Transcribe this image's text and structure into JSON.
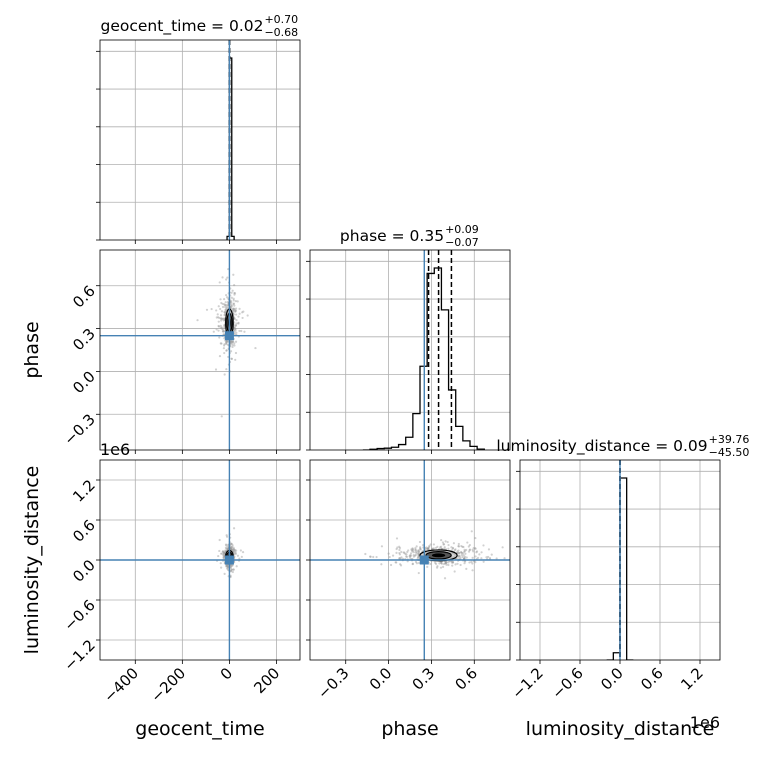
{
  "chart_data": {
    "type": "corner",
    "grid": true,
    "parameters": [
      "geocent_time",
      "phase",
      "luminosity_distance"
    ],
    "axis_labels": [
      "geocent_time",
      "phase",
      "luminosity_distance"
    ],
    "ranges": {
      "geocent_time": [
        -550,
        300
      ],
      "phase": [
        -0.55,
        0.85
      ],
      "luminosity_distance": [
        -1500000,
        1500000
      ]
    },
    "ticks": {
      "geocent_time": [
        -400,
        -200,
        0,
        200
      ],
      "phase": [
        -0.3,
        0.0,
        0.3,
        0.6
      ],
      "luminosity_distance": [
        -1200000,
        -600000,
        0,
        600000,
        1200000
      ]
    },
    "tick_labels": {
      "geocent_time": [
        "−400",
        "−200",
        "0",
        "200"
      ],
      "phase": [
        "−0.3",
        "0.0",
        "0.3",
        "0.6"
      ],
      "luminosity_distance": [
        "−1.2",
        "−0.6",
        "0.0",
        "0.6",
        "1.2"
      ]
    },
    "offset_label": "1e6",
    "titles": [
      {
        "name": "geocent_time",
        "value": "0.02",
        "plus": "+0.70",
        "minus": "−0.68"
      },
      {
        "name": "phase",
        "value": "0.35",
        "plus": "+0.09",
        "minus": "−0.07"
      },
      {
        "name": "luminosity_distance",
        "value": "0.09",
        "plus": "+39.76",
        "minus": "−45.50"
      }
    ],
    "truths": {
      "geocent_time": 0.0,
      "phase": 0.25,
      "luminosity_distance": 0.0
    },
    "quantiles": {
      "geocent_time": [
        -0.66,
        0.02,
        0.72
      ],
      "phase": [
        0.28,
        0.35,
        0.44
      ],
      "luminosity_distance": [
        -45.41,
        0.09,
        39.85
      ]
    },
    "histograms": [
      {
        "param": "geocent_time",
        "bins": [
          -10,
          0,
          10,
          20
        ],
        "counts": [
          0.02,
          1.0,
          0.02
        ]
      },
      {
        "param": "phase",
        "bins": [
          -0.18,
          -0.13,
          -0.08,
          -0.03,
          0.02,
          0.07,
          0.12,
          0.17,
          0.22,
          0.27,
          0.32,
          0.37,
          0.42,
          0.47,
          0.52,
          0.57,
          0.62,
          0.67
        ],
        "counts": [
          0.0,
          0.004,
          0.008,
          0.01,
          0.015,
          0.03,
          0.07,
          0.2,
          0.46,
          0.97,
          1.0,
          0.77,
          0.33,
          0.13,
          0.05,
          0.02,
          0.005
        ]
      },
      {
        "param": "luminosity_distance",
        "bins": [
          -200000,
          -100000,
          0,
          100000,
          200000
        ],
        "counts": [
          0.0,
          0.04,
          1.0,
          0.0
        ]
      }
    ],
    "contours": [
      {
        "x": "geocent_time",
        "y": "phase",
        "center": [
          0,
          0.34
        ],
        "spread": [
          9,
          0.06
        ]
      },
      {
        "x": "geocent_time",
        "y": "luminosity_distance",
        "center": [
          0,
          60000
        ],
        "spread": [
          6,
          50000
        ]
      },
      {
        "x": "phase",
        "y": "luminosity_distance",
        "center": [
          0.35,
          70000
        ],
        "spread": [
          0.08,
          50000
        ]
      }
    ]
  }
}
